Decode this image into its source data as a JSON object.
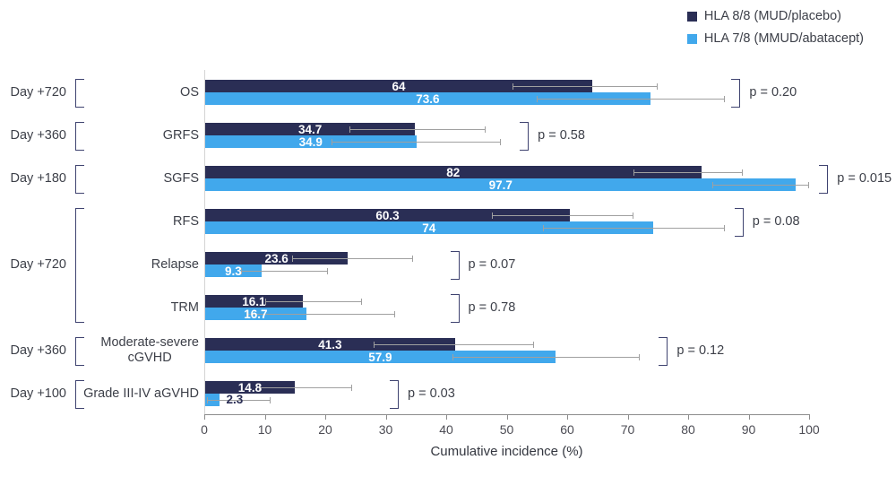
{
  "legend": {
    "items": [
      {
        "label": "HLA 8/8 (MUD/placebo)",
        "color": "#2a2e55"
      },
      {
        "label": "HLA 7/8 (MMUD/abatacept)",
        "color": "#41a8ec"
      }
    ]
  },
  "chart_data": {
    "type": "bar",
    "orientation": "horizontal",
    "title": "",
    "xlabel": "Cumulative incidence (%)",
    "xlim": [
      0,
      100
    ],
    "xticks": [
      0,
      10,
      20,
      30,
      40,
      50,
      60,
      70,
      80,
      90,
      100
    ],
    "grid": false,
    "legend_position": "top-right",
    "series_names": [
      "HLA 8/8 (MUD/placebo)",
      "HLA 7/8 (MMUD/abatacept)"
    ],
    "colors": {
      "series1": "#2a2e55",
      "series2": "#41a8ec",
      "error_bar": "#a0a0a0",
      "bracket": "#3f4370",
      "text": "#3d4049",
      "axis": "#8c8c8c"
    },
    "rows": [
      {
        "label_lines": [
          "OS"
        ],
        "values": [
          64,
          73.6
        ],
        "value_labels": [
          "64",
          "73.6"
        ],
        "ci": [
          [
            51,
            75
          ],
          [
            55,
            86
          ]
        ],
        "p_label": "p = 0.20",
        "p_x": 88.5,
        "outside_labels": [
          false,
          false
        ]
      },
      {
        "label_lines": [
          "GRFS"
        ],
        "values": [
          34.7,
          34.9
        ],
        "value_labels": [
          "34.7",
          "34.9"
        ],
        "ci": [
          [
            24,
            46.5
          ],
          [
            21,
            49
          ]
        ],
        "p_label": "p = 0.58",
        "p_x": 53.5,
        "outside_labels": [
          false,
          false
        ]
      },
      {
        "label_lines": [
          "SGFS"
        ],
        "values": [
          82,
          97.7
        ],
        "value_labels": [
          "82",
          "97.7"
        ],
        "ci": [
          [
            71,
            89
          ],
          [
            84,
            100
          ]
        ],
        "p_label": "p = 0.015",
        "p_x": 103,
        "outside_labels": [
          false,
          false
        ]
      },
      {
        "label_lines": [
          "RFS"
        ],
        "values": [
          60.3,
          74
        ],
        "value_labels": [
          "60.3",
          "74"
        ],
        "ci": [
          [
            47.5,
            71
          ],
          [
            56,
            86
          ]
        ],
        "p_label": "p = 0.08",
        "p_x": 89,
        "outside_labels": [
          false,
          false
        ]
      },
      {
        "label_lines": [
          "Relapse"
        ],
        "values": [
          23.6,
          9.3
        ],
        "value_labels": [
          "23.6",
          "9.3"
        ],
        "ci": [
          [
            14.5,
            34.5
          ],
          [
            6,
            20.5
          ]
        ],
        "p_label": "p = 0.07",
        "p_x": 42,
        "outside_labels": [
          false,
          false
        ]
      },
      {
        "label_lines": [
          "TRM"
        ],
        "values": [
          16.1,
          16.7
        ],
        "value_labels": [
          "16.1",
          "16.7"
        ],
        "ci": [
          [
            10,
            26
          ],
          [
            7,
            31.5
          ]
        ],
        "p_label": "p = 0.78",
        "p_x": 42,
        "outside_labels": [
          false,
          false
        ]
      },
      {
        "label_lines": [
          "Moderate-severe",
          "cGVHD"
        ],
        "values": [
          41.3,
          57.9
        ],
        "value_labels": [
          "41.3",
          "57.9"
        ],
        "ci": [
          [
            28,
            54.5
          ],
          [
            41,
            72
          ]
        ],
        "p_label": "p = 0.12",
        "p_x": 76.5,
        "outside_labels": [
          false,
          false
        ]
      },
      {
        "label_lines": [
          "Grade III-IV aGVHD"
        ],
        "values": [
          14.8,
          2.3
        ],
        "value_labels": [
          "14.8",
          "2.3"
        ],
        "ci": [
          [
            9,
            24.5
          ],
          [
            0.5,
            11
          ]
        ],
        "p_label": "p = 0.03",
        "p_x": 32,
        "outside_labels": [
          false,
          true
        ]
      }
    ],
    "day_groups": [
      {
        "label": "Day +720",
        "row_start": 0,
        "row_end": 0
      },
      {
        "label": "Day +360",
        "row_start": 1,
        "row_end": 1
      },
      {
        "label": "Day +180",
        "row_start": 2,
        "row_end": 2
      },
      {
        "label": "Day +720",
        "row_start": 3,
        "row_end": 5
      },
      {
        "label": "Day +360",
        "row_start": 6,
        "row_end": 6
      },
      {
        "label": "Day +100",
        "row_start": 7,
        "row_end": 7
      }
    ]
  }
}
